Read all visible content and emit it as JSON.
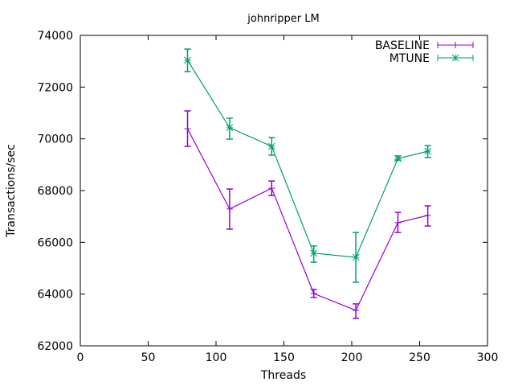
{
  "chart_data": {
    "type": "line",
    "title": "johnripper LM",
    "xlabel": "Threads",
    "ylabel": "Transactions/sec",
    "xlim": [
      0,
      300
    ],
    "ylim": [
      62000,
      74000
    ],
    "xticks": [
      0,
      50,
      100,
      150,
      200,
      250,
      300
    ],
    "yticks": [
      62000,
      64000,
      66000,
      68000,
      70000,
      72000,
      74000
    ],
    "grid": false,
    "legend_position": "top-right",
    "series": [
      {
        "name": "BASELINE",
        "color": "#9400d3",
        "marker": "plus",
        "x": [
          79,
          110,
          141,
          172,
          203,
          234,
          256
        ],
        "y": [
          70390,
          67290,
          68090,
          64020,
          63370,
          66760,
          67040
        ],
        "err_low": [
          69710,
          66510,
          67810,
          63870,
          63060,
          66380,
          66630
        ],
        "err_high": [
          71080,
          68060,
          68370,
          64180,
          63620,
          67160,
          67410
        ]
      },
      {
        "name": "MTUNE",
        "color": "#009e73",
        "marker": "cross",
        "x": [
          79,
          110,
          141,
          172,
          203,
          234,
          256
        ],
        "y": [
          73040,
          70430,
          69710,
          65580,
          65420,
          69240,
          69520
        ],
        "err_low": [
          72600,
          69990,
          69370,
          65230,
          64460,
          69180,
          69280
        ],
        "err_high": [
          73470,
          70800,
          70050,
          65860,
          66380,
          69340,
          69740
        ]
      }
    ]
  }
}
